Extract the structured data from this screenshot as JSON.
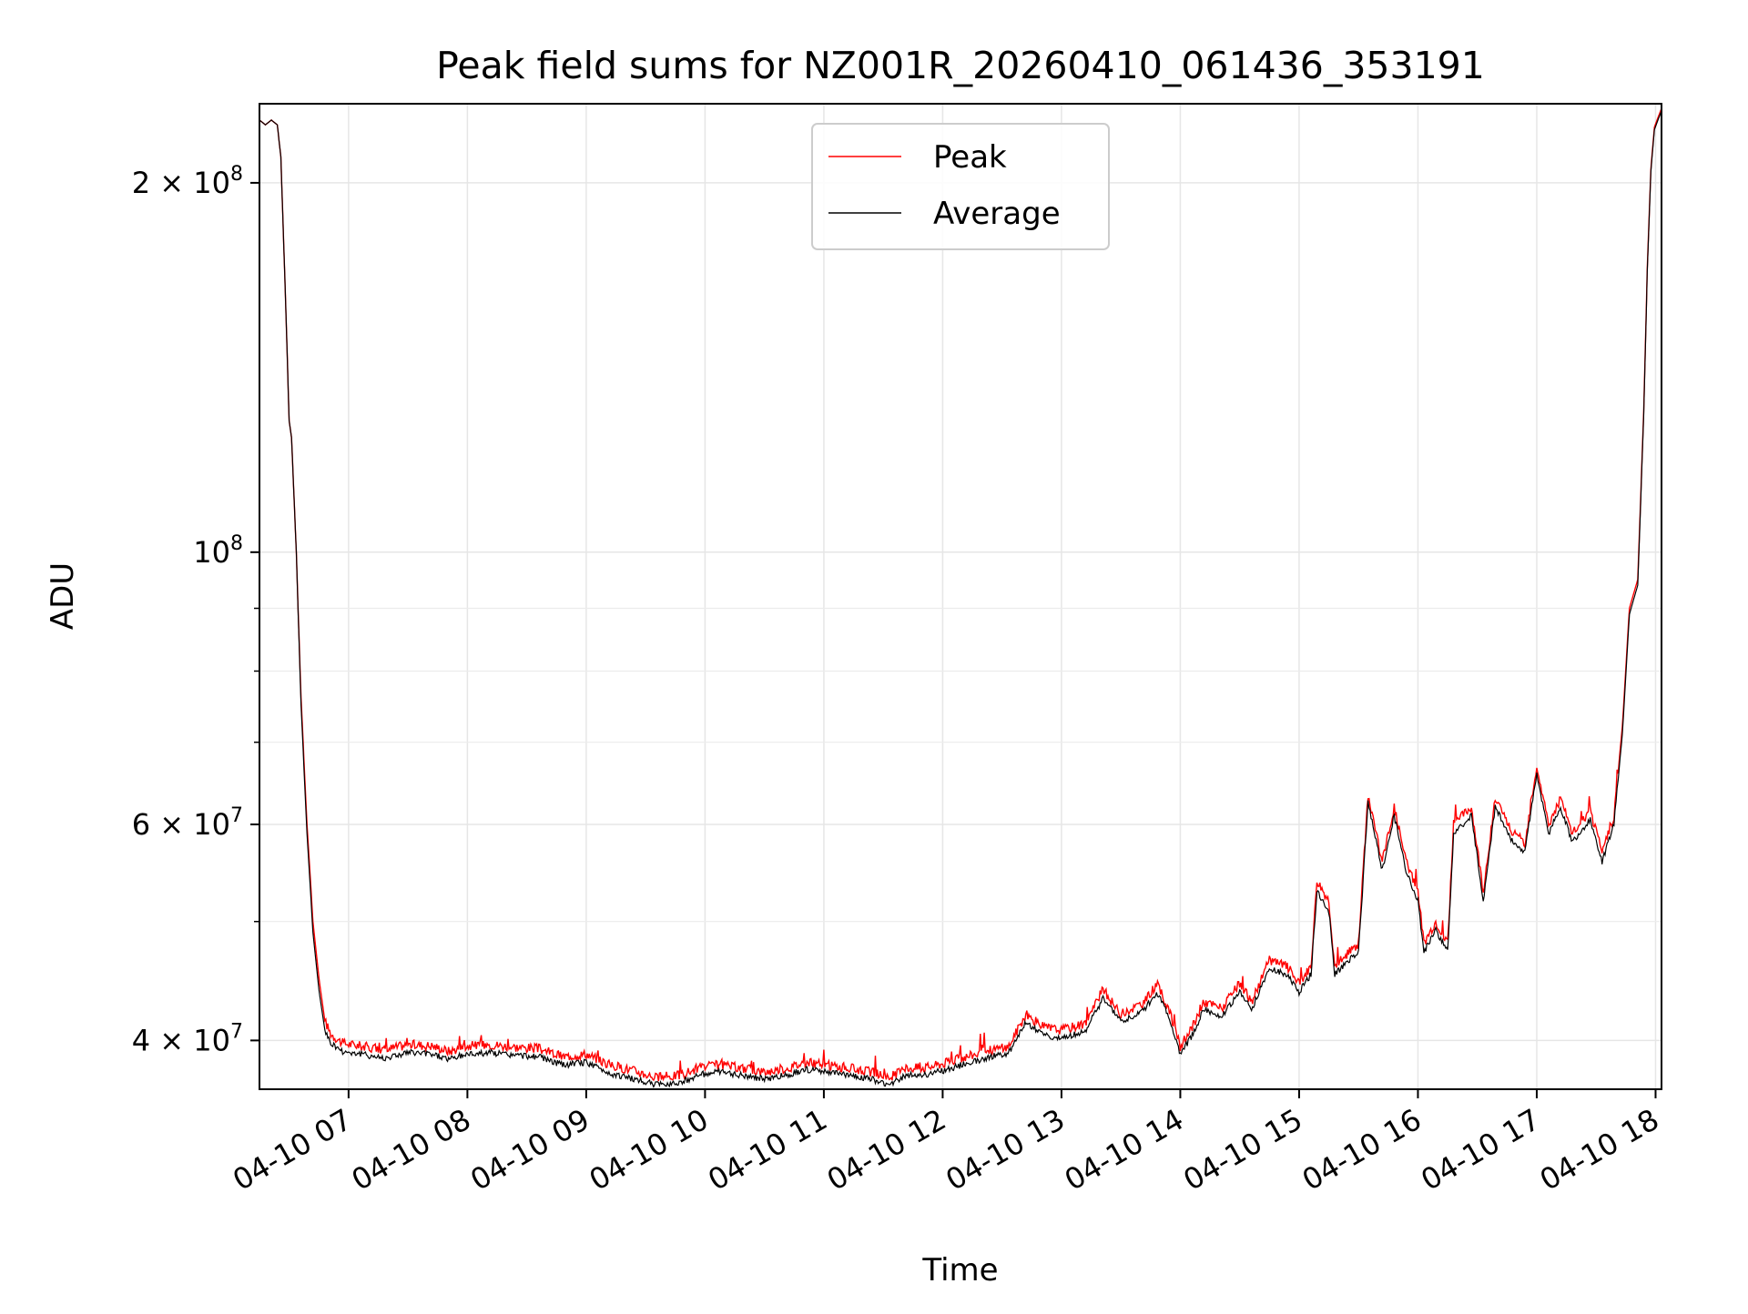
{
  "chart_data": {
    "type": "line",
    "title": "Peak field sums for NZ001R_20260410_061436_353191",
    "xlabel": "Time",
    "ylabel": "ADU",
    "yscale": "log",
    "ylim": [
      36500000,
      232000000
    ],
    "xlim_hours": [
      6.25,
      18.05
    ],
    "grid": true,
    "legend_position": "top-center",
    "x_ticks": [
      {
        "label": "04-10 07",
        "hour": 7
      },
      {
        "label": "04-10 08",
        "hour": 8
      },
      {
        "label": "04-10 09",
        "hour": 9
      },
      {
        "label": "04-10 10",
        "hour": 10
      },
      {
        "label": "04-10 11",
        "hour": 11
      },
      {
        "label": "04-10 12",
        "hour": 12
      },
      {
        "label": "04-10 13",
        "hour": 13
      },
      {
        "label": "04-10 14",
        "hour": 14
      },
      {
        "label": "04-10 15",
        "hour": 15
      },
      {
        "label": "04-10 16",
        "hour": 16
      },
      {
        "label": "04-10 17",
        "hour": 17
      },
      {
        "label": "04-10 18",
        "hour": 18
      }
    ],
    "y_ticks": [
      {
        "mantissa": "4",
        "exp": "7",
        "value": 40000000
      },
      {
        "mantissa": "6",
        "exp": "7",
        "value": 60000000
      },
      {
        "mantissa": "",
        "exp": "8",
        "value": 100000000
      },
      {
        "mantissa": "2",
        "exp": "8",
        "value": 200000000
      }
    ],
    "y_minor_ticks": [
      50000000,
      70000000,
      80000000,
      90000000
    ],
    "series": [
      {
        "name": "Peak",
        "color": "#ff0000",
        "points": [
          [
            6.25,
            225000000.0
          ],
          [
            6.3,
            223000000.0
          ],
          [
            6.35,
            225000000.0
          ],
          [
            6.4,
            223000000.0
          ],
          [
            6.43,
            210000000.0
          ],
          [
            6.47,
            160000000.0
          ],
          [
            6.5,
            128000000.0
          ],
          [
            6.52,
            124000000.0
          ],
          [
            6.56,
            100000000.0
          ],
          [
            6.6,
            76000000.0
          ],
          [
            6.65,
            60000000.0
          ],
          [
            6.7,
            50000000.0
          ],
          [
            6.75,
            45000000.0
          ],
          [
            6.8,
            41500000.0
          ],
          [
            6.85,
            40500000.0
          ],
          [
            6.95,
            39800000.0
          ],
          [
            7.1,
            39600000.0
          ],
          [
            7.3,
            39300000.0
          ],
          [
            7.5,
            39700000.0
          ],
          [
            7.7,
            39600000.0
          ],
          [
            7.85,
            39200000.0
          ],
          [
            8.0,
            39600000.0
          ],
          [
            8.2,
            39700000.0
          ],
          [
            8.4,
            39500000.0
          ],
          [
            8.6,
            39400000.0
          ],
          [
            8.8,
            38800000.0
          ],
          [
            9.0,
            39000000.0
          ],
          [
            9.2,
            38200000.0
          ],
          [
            9.4,
            37800000.0
          ],
          [
            9.6,
            37300000.0
          ],
          [
            9.8,
            37500000.0
          ],
          [
            9.95,
            38000000.0
          ],
          [
            10.1,
            38200000.0
          ],
          [
            10.3,
            38000000.0
          ],
          [
            10.5,
            37700000.0
          ],
          [
            10.7,
            38000000.0
          ],
          [
            10.85,
            38400000.0
          ],
          [
            11.0,
            38200000.0
          ],
          [
            11.2,
            38000000.0
          ],
          [
            11.4,
            37700000.0
          ],
          [
            11.55,
            37300000.0
          ],
          [
            11.7,
            38000000.0
          ],
          [
            11.85,
            38000000.0
          ],
          [
            12.0,
            38300000.0
          ],
          [
            12.2,
            38800000.0
          ],
          [
            12.4,
            39300000.0
          ],
          [
            12.55,
            39500000.0
          ],
          [
            12.7,
            42000000.0
          ],
          [
            12.85,
            41000000.0
          ],
          [
            13.0,
            40800000.0
          ],
          [
            13.2,
            41300000.0
          ],
          [
            13.35,
            44000000.0
          ],
          [
            13.5,
            42000000.0
          ],
          [
            13.7,
            43000000.0
          ],
          [
            13.8,
            44500000.0
          ],
          [
            13.9,
            42500000.0
          ],
          [
            14.0,
            39500000.0
          ],
          [
            14.1,
            41000000.0
          ],
          [
            14.2,
            43000000.0
          ],
          [
            14.35,
            42500000.0
          ],
          [
            14.5,
            44500000.0
          ],
          [
            14.6,
            43000000.0
          ],
          [
            14.75,
            46500000.0
          ],
          [
            14.9,
            46000000.0
          ],
          [
            15.0,
            44500000.0
          ],
          [
            15.1,
            46000000.0
          ],
          [
            15.15,
            54000000.0
          ],
          [
            15.25,
            52000000.0
          ],
          [
            15.3,
            46000000.0
          ],
          [
            15.4,
            47000000.0
          ],
          [
            15.5,
            48000000.0
          ],
          [
            15.58,
            63500000.0
          ],
          [
            15.7,
            56000000.0
          ],
          [
            15.8,
            62000000.0
          ],
          [
            15.9,
            56000000.0
          ],
          [
            16.0,
            53000000.0
          ],
          [
            16.05,
            48000000.0
          ],
          [
            16.15,
            50000000.0
          ],
          [
            16.25,
            48000000.0
          ],
          [
            16.3,
            60000000.0
          ],
          [
            16.45,
            62000000.0
          ],
          [
            16.55,
            53000000.0
          ],
          [
            16.65,
            63000000.0
          ],
          [
            16.8,
            59000000.0
          ],
          [
            16.9,
            58000000.0
          ],
          [
            17.0,
            67000000.0
          ],
          [
            17.1,
            60000000.0
          ],
          [
            17.2,
            63000000.0
          ],
          [
            17.3,
            59000000.0
          ],
          [
            17.45,
            61500000.0
          ],
          [
            17.55,
            57000000.0
          ],
          [
            17.65,
            61000000.0
          ],
          [
            17.72,
            72000000.0
          ],
          [
            17.78,
            90000000.0
          ],
          [
            17.85,
            95000000.0
          ],
          [
            17.9,
            130000000.0
          ],
          [
            17.93,
            170000000.0
          ],
          [
            17.96,
            205000000.0
          ],
          [
            17.99,
            222000000.0
          ],
          [
            18.05,
            230000000.0
          ]
        ]
      },
      {
        "name": "Average",
        "color": "#000000",
        "points": [
          [
            6.25,
            225000000.0
          ],
          [
            6.3,
            223000000.0
          ],
          [
            6.35,
            225000000.0
          ],
          [
            6.4,
            223000000.0
          ],
          [
            6.43,
            210000000.0
          ],
          [
            6.47,
            160000000.0
          ],
          [
            6.5,
            128000000.0
          ],
          [
            6.52,
            124000000.0
          ],
          [
            6.56,
            100000000.0
          ],
          [
            6.6,
            75000000.0
          ],
          [
            6.65,
            59000000.0
          ],
          [
            6.7,
            49000000.0
          ],
          [
            6.75,
            44000000.0
          ],
          [
            6.8,
            40800000.0
          ],
          [
            6.85,
            39800000.0
          ],
          [
            6.95,
            39200000.0
          ],
          [
            7.1,
            39000000.0
          ],
          [
            7.3,
            38700000.0
          ],
          [
            7.5,
            39100000.0
          ],
          [
            7.7,
            39000000.0
          ],
          [
            7.85,
            38600000.0
          ],
          [
            8.0,
            39000000.0
          ],
          [
            8.2,
            39100000.0
          ],
          [
            8.4,
            38900000.0
          ],
          [
            8.6,
            38800000.0
          ],
          [
            8.8,
            38200000.0
          ],
          [
            9.0,
            38400000.0
          ],
          [
            9.2,
            37600000.0
          ],
          [
            9.4,
            37200000.0
          ],
          [
            9.6,
            36800000.0
          ],
          [
            9.8,
            37000000.0
          ],
          [
            9.95,
            37500000.0
          ],
          [
            10.1,
            37700000.0
          ],
          [
            10.3,
            37500000.0
          ],
          [
            10.5,
            37200000.0
          ],
          [
            10.7,
            37500000.0
          ],
          [
            10.85,
            37900000.0
          ],
          [
            11.0,
            37700000.0
          ],
          [
            11.2,
            37500000.0
          ],
          [
            11.4,
            37200000.0
          ],
          [
            11.55,
            36800000.0
          ],
          [
            11.7,
            37500000.0
          ],
          [
            11.85,
            37500000.0
          ],
          [
            12.0,
            37800000.0
          ],
          [
            12.2,
            38300000.0
          ],
          [
            12.4,
            38800000.0
          ],
          [
            12.55,
            39000000.0
          ],
          [
            12.7,
            41400000.0
          ],
          [
            12.85,
            40400000.0
          ],
          [
            13.0,
            40200000.0
          ],
          [
            13.2,
            40700000.0
          ],
          [
            13.35,
            43300000.0
          ],
          [
            13.5,
            41400000.0
          ],
          [
            13.7,
            42400000.0
          ],
          [
            13.8,
            43800000.0
          ],
          [
            13.9,
            41900000.0
          ],
          [
            14.0,
            39000000.0
          ],
          [
            14.1,
            40400000.0
          ],
          [
            14.2,
            42400000.0
          ],
          [
            14.35,
            41900000.0
          ],
          [
            14.5,
            43800000.0
          ],
          [
            14.6,
            42400000.0
          ],
          [
            14.75,
            45800000.0
          ],
          [
            14.9,
            45300000.0
          ],
          [
            15.0,
            43800000.0
          ],
          [
            15.1,
            45300000.0
          ],
          [
            15.15,
            53000000.0
          ],
          [
            15.25,
            51000000.0
          ],
          [
            15.3,
            45300000.0
          ],
          [
            15.4,
            46300000.0
          ],
          [
            15.5,
            47200000.0
          ],
          [
            15.58,
            62500000.0
          ],
          [
            15.7,
            55000000.0
          ],
          [
            15.8,
            61000000.0
          ],
          [
            15.9,
            55000000.0
          ],
          [
            16.0,
            52000000.0
          ],
          [
            16.05,
            47200000.0
          ],
          [
            16.15,
            49200000.0
          ],
          [
            16.25,
            47200000.0
          ],
          [
            16.3,
            59000000.0
          ],
          [
            16.45,
            61000000.0
          ],
          [
            16.55,
            52000000.0
          ],
          [
            16.65,
            62000000.0
          ],
          [
            16.8,
            58000000.0
          ],
          [
            16.9,
            57000000.0
          ],
          [
            17.0,
            66000000.0
          ],
          [
            17.1,
            59000000.0
          ],
          [
            17.2,
            62000000.0
          ],
          [
            17.3,
            58000000.0
          ],
          [
            17.45,
            60500000.0
          ],
          [
            17.55,
            56000000.0
          ],
          [
            17.65,
            60000000.0
          ],
          [
            17.72,
            71000000.0
          ],
          [
            17.78,
            89000000.0
          ],
          [
            17.85,
            94000000.0
          ],
          [
            17.9,
            129000000.0
          ],
          [
            17.93,
            169000000.0
          ],
          [
            17.96,
            204000000.0
          ],
          [
            17.99,
            221000000.0
          ],
          [
            18.05,
            229000000.0
          ]
        ]
      }
    ]
  }
}
